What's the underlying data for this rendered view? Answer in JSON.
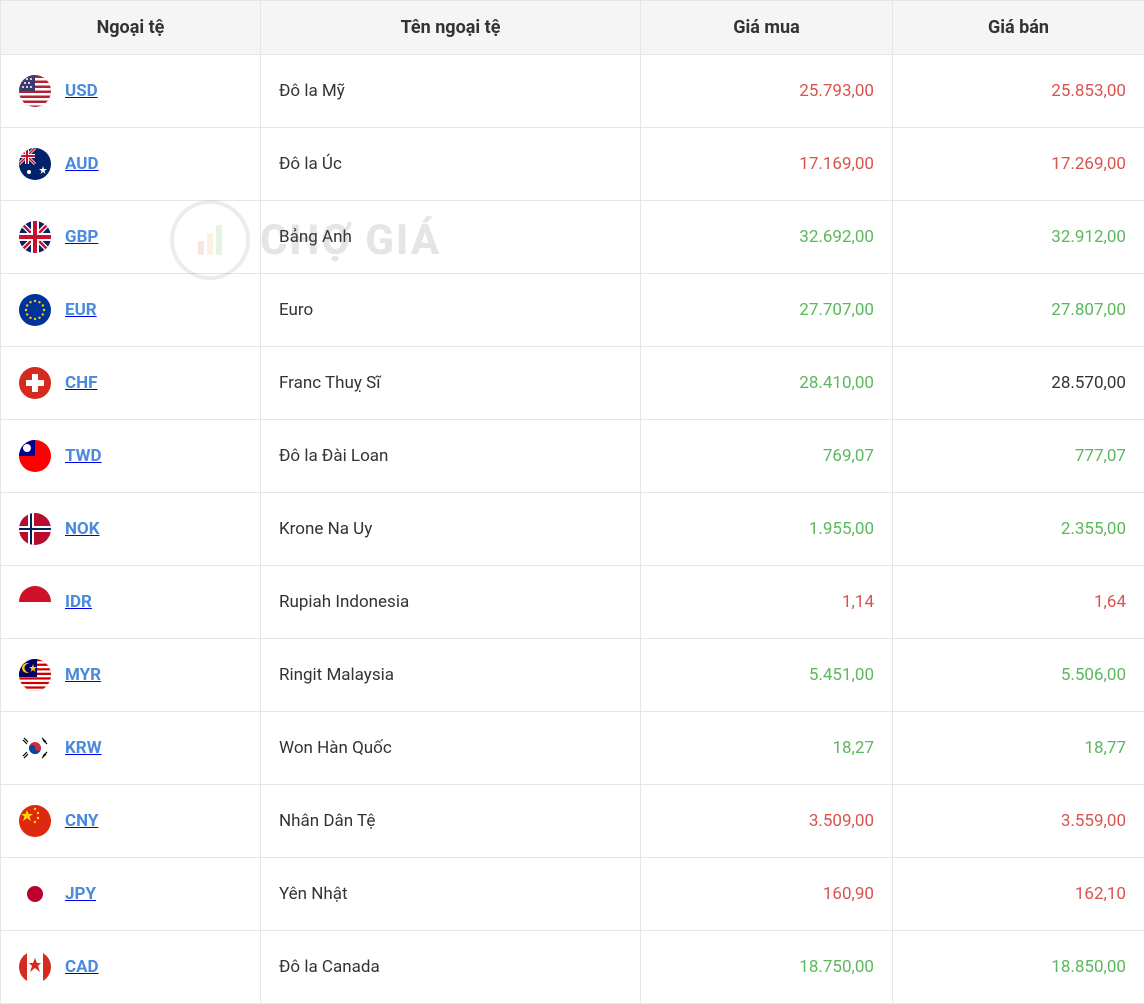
{
  "columns": {
    "currency": "Ngoại tệ",
    "name": "Tên ngoại tệ",
    "buy": "Giá mua",
    "sell": "Giá bán"
  },
  "colors": {
    "up": "#5cb85c",
    "down": "#d9534f",
    "flat": "#333333",
    "code_link": "#4a89dc",
    "header_bg": "#f5f5f5",
    "border": "#e5e5e5",
    "text": "#333333",
    "background": "#ffffff"
  },
  "watermark_text": "CHỢ GIÁ",
  "rows": [
    {
      "code": "USD",
      "name": "Đô la Mỹ",
      "buy": "25.793,00",
      "buy_dir": "down",
      "sell": "25.853,00",
      "sell_dir": "down",
      "flag": "us"
    },
    {
      "code": "AUD",
      "name": "Đô la Úc",
      "buy": "17.169,00",
      "buy_dir": "down",
      "sell": "17.269,00",
      "sell_dir": "down",
      "flag": "au"
    },
    {
      "code": "GBP",
      "name": "Bảng Anh",
      "buy": "32.692,00",
      "buy_dir": "up",
      "sell": "32.912,00",
      "sell_dir": "up",
      "flag": "gb"
    },
    {
      "code": "EUR",
      "name": "Euro",
      "buy": "27.707,00",
      "buy_dir": "up",
      "sell": "27.807,00",
      "sell_dir": "up",
      "flag": "eu"
    },
    {
      "code": "CHF",
      "name": "Franc Thuỵ Sĩ",
      "buy": "28.410,00",
      "buy_dir": "up",
      "sell": "28.570,00",
      "sell_dir": "flat",
      "flag": "ch"
    },
    {
      "code": "TWD",
      "name": "Đô la Đài Loan",
      "buy": "769,07",
      "buy_dir": "up",
      "sell": "777,07",
      "sell_dir": "up",
      "flag": "tw"
    },
    {
      "code": "NOK",
      "name": "Krone Na Uy",
      "buy": "1.955,00",
      "buy_dir": "up",
      "sell": "2.355,00",
      "sell_dir": "up",
      "flag": "no"
    },
    {
      "code": "IDR",
      "name": "Rupiah Indonesia",
      "buy": "1,14",
      "buy_dir": "down",
      "sell": "1,64",
      "sell_dir": "down",
      "flag": "id"
    },
    {
      "code": "MYR",
      "name": "Ringit Malaysia",
      "buy": "5.451,00",
      "buy_dir": "up",
      "sell": "5.506,00",
      "sell_dir": "up",
      "flag": "my"
    },
    {
      "code": "KRW",
      "name": "Won Hàn Quốc",
      "buy": "18,27",
      "buy_dir": "up",
      "sell": "18,77",
      "sell_dir": "up",
      "flag": "kr"
    },
    {
      "code": "CNY",
      "name": "Nhân Dân Tệ",
      "buy": "3.509,00",
      "buy_dir": "down",
      "sell": "3.559,00",
      "sell_dir": "down",
      "flag": "cn"
    },
    {
      "code": "JPY",
      "name": "Yên Nhật",
      "buy": "160,90",
      "buy_dir": "down",
      "sell": "162,10",
      "sell_dir": "down",
      "flag": "jp"
    },
    {
      "code": "CAD",
      "name": "Đô la Canada",
      "buy": "18.750,00",
      "buy_dir": "up",
      "sell": "18.850,00",
      "sell_dir": "up",
      "flag": "ca"
    }
  ]
}
